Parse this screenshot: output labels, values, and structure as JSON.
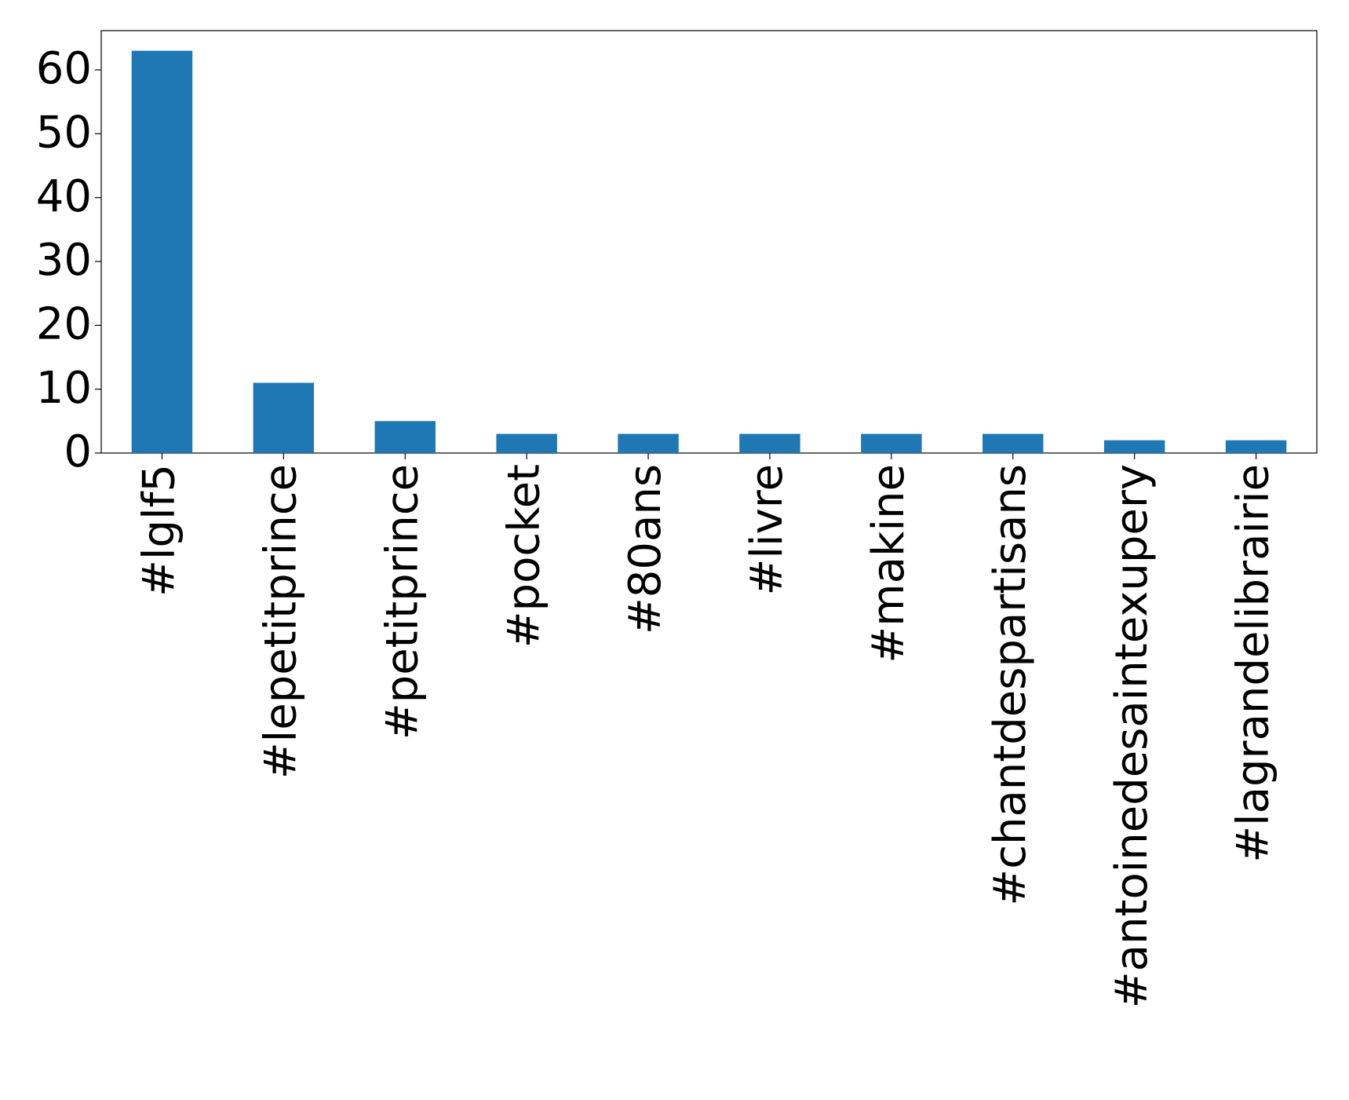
{
  "chart_data": {
    "type": "bar",
    "categories": [
      "#lglf5",
      "#lepetitprince",
      "#petitprince",
      "#pocket",
      "#80ans",
      "#livre",
      "#makine",
      "#chantdespartisans",
      "#antoinedesaintexupery",
      "#lagrandelibrairie"
    ],
    "values": [
      63,
      11,
      5,
      3,
      3,
      3,
      3,
      3,
      2,
      2
    ],
    "color": "#1f77b4",
    "ylim": [
      0,
      66.15
    ],
    "yticks": [
      0,
      10,
      20,
      30,
      40,
      50,
      60
    ],
    "grid": false
  }
}
